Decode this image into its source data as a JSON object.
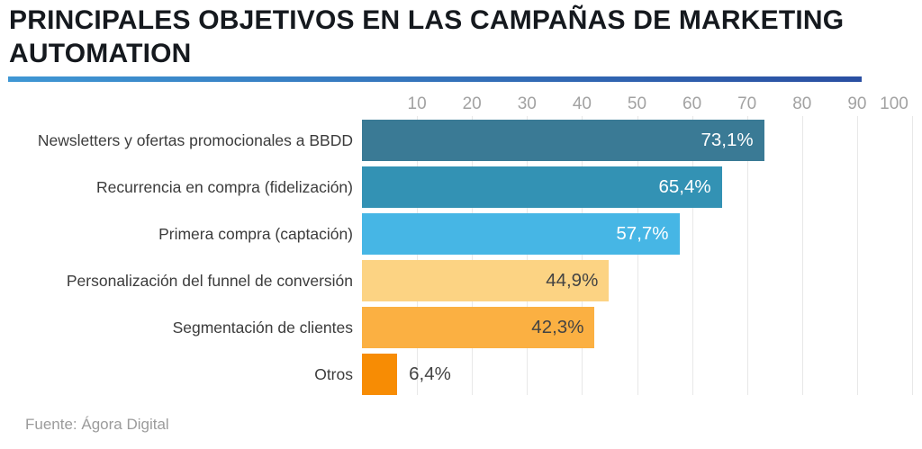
{
  "header": {
    "title": "PRINCIPALES OBJETIVOS EN LAS CAMPAÑAS DE MARKETING AUTOMATION",
    "underline_gradient_from": "#3f97d4",
    "underline_gradient_to": "#2a4fa2"
  },
  "chart_data": {
    "type": "bar",
    "orientation": "horizontal",
    "title": "PRINCIPALES OBJETIVOS EN LAS CAMPAÑAS DE MARKETING AUTOMATION",
    "categories": [
      "Newsletters y ofertas promocionales a BBDD",
      "Recurrencia en compra (fidelización)",
      "Primera compra (captación)",
      "Personalización del funnel de conversión",
      "Segmentación de clientes",
      "Otros"
    ],
    "values": [
      73.1,
      65.4,
      57.7,
      44.9,
      42.3,
      6.4
    ],
    "value_labels": [
      "73,1%",
      "65,4%",
      "57,7%",
      "44,9%",
      "42,3%",
      "6,4%"
    ],
    "bar_colors": [
      "#3a7a95",
      "#3392b4",
      "#46b6e5",
      "#fcd383",
      "#fbb042",
      "#f78c04"
    ],
    "value_label_colors": [
      "#ffffff",
      "#ffffff",
      "#ffffff",
      "#434343",
      "#434343",
      "#434343"
    ],
    "value_label_inside": [
      true,
      true,
      true,
      true,
      true,
      false
    ],
    "x_ticks": [
      10,
      20,
      30,
      40,
      50,
      60,
      70,
      80,
      90,
      100
    ],
    "xlim": [
      0,
      100
    ],
    "grid": true,
    "grid_color": "#e8e8e8",
    "axis_text_color": "#a2a2a2"
  },
  "footer": {
    "source": "Fuente: Ágora Digital"
  }
}
